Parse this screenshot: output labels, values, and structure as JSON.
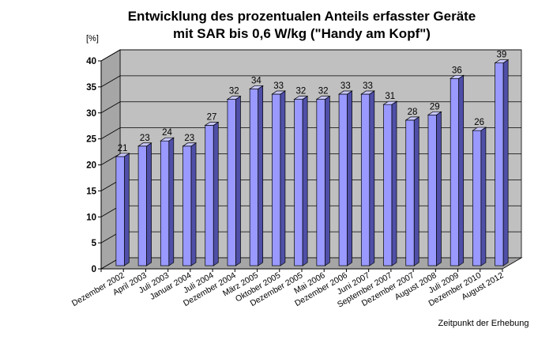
{
  "chart_data": {
    "type": "bar",
    "title_lines": [
      "Entwicklung des prozentualen Anteils erfasster Geräte",
      "mit SAR bis 0,6 W/kg (\"Handy am Kopf\")"
    ],
    "ylabel": "[%]",
    "xlabel": "Zeitpunkt der Erhebung",
    "ylim": [
      0,
      40
    ],
    "yticks": [
      0,
      5,
      10,
      15,
      20,
      25,
      30,
      35,
      40
    ],
    "grid": true,
    "categories": [
      "Dezember 2002",
      "April 2003",
      "Juli 2003",
      "Januar 2004",
      "Juli 2004",
      "Dezember 2004",
      "März 2005",
      "Oktober 2005",
      "Dezember 2005",
      "Mai 2006",
      "Dezember 2006",
      "Juni 2007",
      "September 2007",
      "Dezember 2007",
      "August 2008",
      "Juli 2009",
      "Dezember 2010",
      "August 2012"
    ],
    "values": [
      21,
      23,
      24,
      23,
      27,
      32,
      34,
      33,
      32,
      32,
      33,
      33,
      31,
      28,
      29,
      36,
      26,
      39
    ],
    "value_labels": [
      "21",
      "23",
      "24",
      "23",
      "27",
      "32",
      "34",
      "33",
      "32",
      "32",
      "33",
      "33",
      "31",
      "28",
      "29",
      "36",
      "26",
      "39"
    ],
    "colors": {
      "bar_front": "#9999ff",
      "bar_side": "#4f4fa8",
      "bar_top": "#c8c8ff",
      "wall": "#c0c0c0",
      "floor": "#a6a6a6",
      "grid": "#000000"
    }
  }
}
